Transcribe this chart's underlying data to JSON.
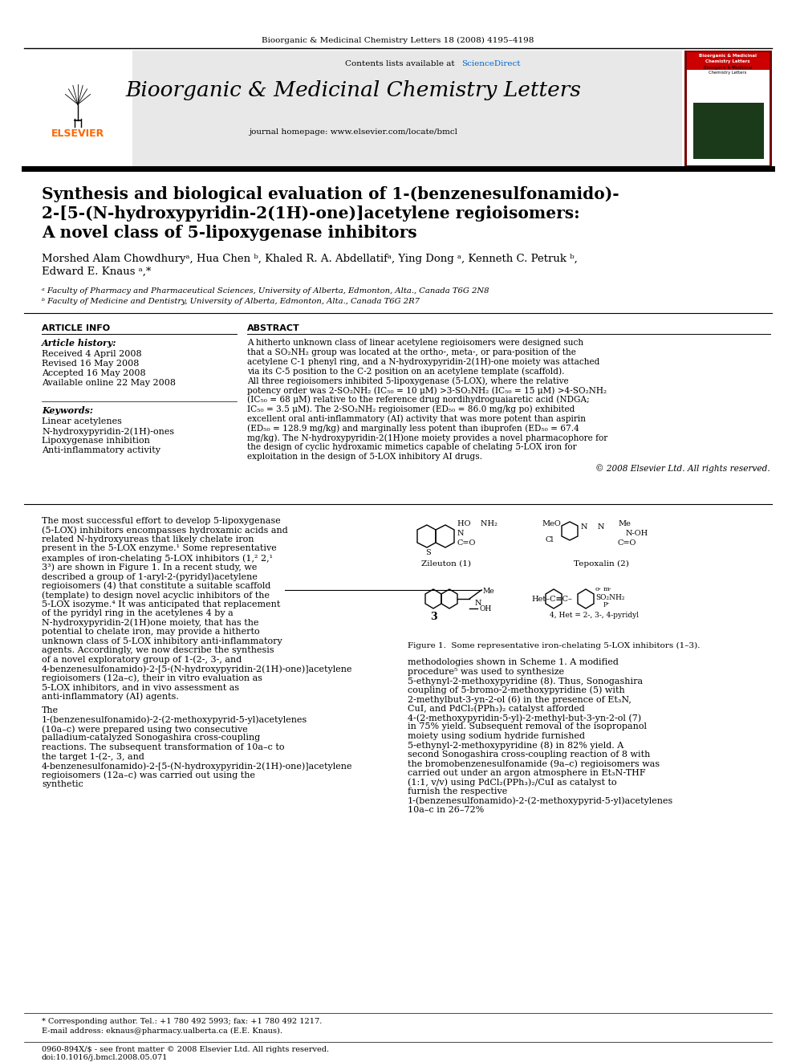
{
  "page_citation": "Bioorganic & Medicinal Chemistry Letters 18 (2008) 4195–4198",
  "journal_name": "Bioorganic & Medicinal Chemistry Letters",
  "contents_text": "Contents lists available at ",
  "sciencedirect_text": "ScienceDirect",
  "journal_homepage": "journal homepage: www.elsevier.com/locate/bmcl",
  "article_title_line1": "Synthesis and biological evaluation of 1-(benzenesulfonamido)-",
  "article_title_line2": "2-[5-(N-hydroxypyridin-2(1H)-one)]acetylene regioisomers:",
  "article_title_line3": "A novel class of 5-lipoxygenase inhibitors",
  "authors": "Morshed Alam Chowdhuryᵃ, Hua Chen ᵇ, Khaled R. A. Abdellatifᵃ, Ying Dong ᵃ, Kenneth C. Petruk ᵇ,",
  "authors2": "Edward E. Knaus ᵃ,*",
  "affil_a": "ᵃ Faculty of Pharmacy and Pharmaceutical Sciences, University of Alberta, Edmonton, Alta., Canada T6G 2N8",
  "affil_b": "ᵇ Faculty of Medicine and Dentistry, University of Alberta, Edmonton, Alta., Canada T6G 2R7",
  "article_info_label": "ARTICLE INFO",
  "abstract_label": "ABSTRACT",
  "article_history_label": "Article history:",
  "received": "Received 4 April 2008",
  "revised": "Revised 16 May 2008",
  "accepted": "Accepted 16 May 2008",
  "available": "Available online 22 May 2008",
  "keywords_label": "Keywords:",
  "keyword1": "Linear acetylenes",
  "keyword2": "N-hydroxypyridin-2(1H)-ones",
  "keyword3": "Lipoxygenase inhibition",
  "keyword4": "Anti-inflammatory activity",
  "abstract_text": "A hitherto unknown class of linear acetylene regioisomers were designed such that a SO₂NH₂ group was located at the ortho-, meta-, or para-position of the acetylene C-1 phenyl ring, and a N-hydroxypyridin-2(1H)-one moiety was attached via its C-5 position to the C-2 position on an acetylene template (scaffold). All three regioisomers inhibited 5-lipoxygenase (5-LOX), where the relative potency order was 2-SO₂NH₂ (IC₅₀ = 10 μM) >3-SO₂NH₂ (IC₅₀ = 15 μM) >4-SO₂NH₂ (IC₅₀ = 68 μM) relative to the reference drug nordihydroguaiaretic acid (NDGA; IC₅₀ = 3.5 μM). The 2-SO₂NH₂ regioisomer (ED₅₀ = 86.0 mg/kg po) exhibited excellent oral anti-inflammatory (AI) activity that was more potent than aspirin (ED₅₀ = 128.9 mg/kg) and marginally less potent than ibuprofen (ED₅₀ = 67.4 mg/kg). The N-hydroxypyridin-2(1H)one moiety provides a novel pharmacophore for the design of cyclic hydroxamic mimetics capable of chelating 5-LOX iron for exploitation in the design of 5-LOX inhibitory AI drugs.",
  "copyright": "© 2008 Elsevier Ltd. All rights reserved.",
  "body_para1": "    The most successful effort to develop 5-lipoxygenase (5-LOX) inhibitors encompasses hydroxamic acids and related N-hydroxyureas that likely chelate iron present in the 5-LOX enzyme.¹ Some representative examples of iron-chelating 5-LOX inhibitors (1,² 2,¹ 3³) are shown in Figure 1. In a recent study, we described a group of 1-aryl-2-(pyridyl)acetylene regioisomers (4) that constitute a suitable scaffold (template) to design novel acyclic inhibitors of the 5-LOX isozyme.⁴ It was anticipated that replacement of the pyridyl ring in the acetylenes 4 by a N-hydroxypyridin-2(1H)one moiety, that has the potential to chelate iron, may provide a hitherto unknown class of 5-LOX inhibitory anti-inflammatory agents. Accordingly, we now describe the synthesis of a novel exploratory group of 1-(2-, 3-, and 4-benzenesulfonamido)-2-[5-(N-hydroxypyridin-2(1H)-one)]acetylene regioisomers (12a–c), their in vitro evaluation as 5-LOX inhibitors, and in vivo assessment as anti-inflammatory (AI) agents.",
  "body_para2": "    The 1-(benzenesulfonamido)-2-(2-methoxypyrid-5-yl)acetylenes (10a–c) were prepared using two consecutive palladium-catalyzed Sonogashira cross-coupling reactions. The subsequent transformation of 10a–c to the target 1-(2-, 3, and 4-benzenesulfonamido)-2-[5-(N-hydroxypyridin-2(1H)-one)]acetylene regioisomers (12a–c) was carried out using the synthetic",
  "figure1_caption": "Figure 1.  Some representative iron-chelating 5-LOX inhibitors (1–3).",
  "body_para3": "methodologies shown in Scheme 1. A modified procedure⁵ was used to synthesize 5-ethynyl-2-methoxypyridine (8). Thus, Sonogashira coupling of 5-bromo-2-methoxypyridine (5) with 2-methylbut-3-yn-2-ol (6) in the presence of Et₃N, CuI, and PdCl₂(PPh₃)₂ catalyst afforded 4-(2-methoxypyridin-5-yl)-2-methyl-but-3-yn-2-ol (7) in 75% yield. Subsequent removal of the isopropanol moiety using sodium hydride furnished 5-ethynyl-2-methoxypyridine (8) in 82% yield. A second Sonogashira cross-coupling reaction of 8 with the bromobenzenesulfonamide (9a–c) regioisomers was carried out under an argon atmosphere in Et₃N-THF (1:1, v/v) using PdCl₂(PPh₃)₂/CuI as catalyst to furnish the respective 1-(benzenesulfonamido)-2-(2-methoxypyrid-5-yl)acetylenes 10a–c in 26–72%",
  "footnote_star": "* Corresponding author. Tel.: +1 780 492 5993; fax: +1 780 492 1217.",
  "footnote_email": "E-mail address: eknaus@pharmacy.ualberta.ca (E.E. Knaus).",
  "footer_line1": "0960-894X/$ - see front matter © 2008 Elsevier Ltd. All rights reserved.",
  "footer_doi": "doi:10.1016/j.bmcl.2008.05.071",
  "elsevier_orange": "#FF6600",
  "sciencedirect_blue": "#0066CC",
  "figure1_zileuton_label": "Zileuton (1)",
  "figure1_tepoxalin_label": "Tepoxalin (2)",
  "figure1_compound3_label": "3",
  "figure1_compound4_label": "4, Het = 2-, 3-, 4-pyridyl"
}
